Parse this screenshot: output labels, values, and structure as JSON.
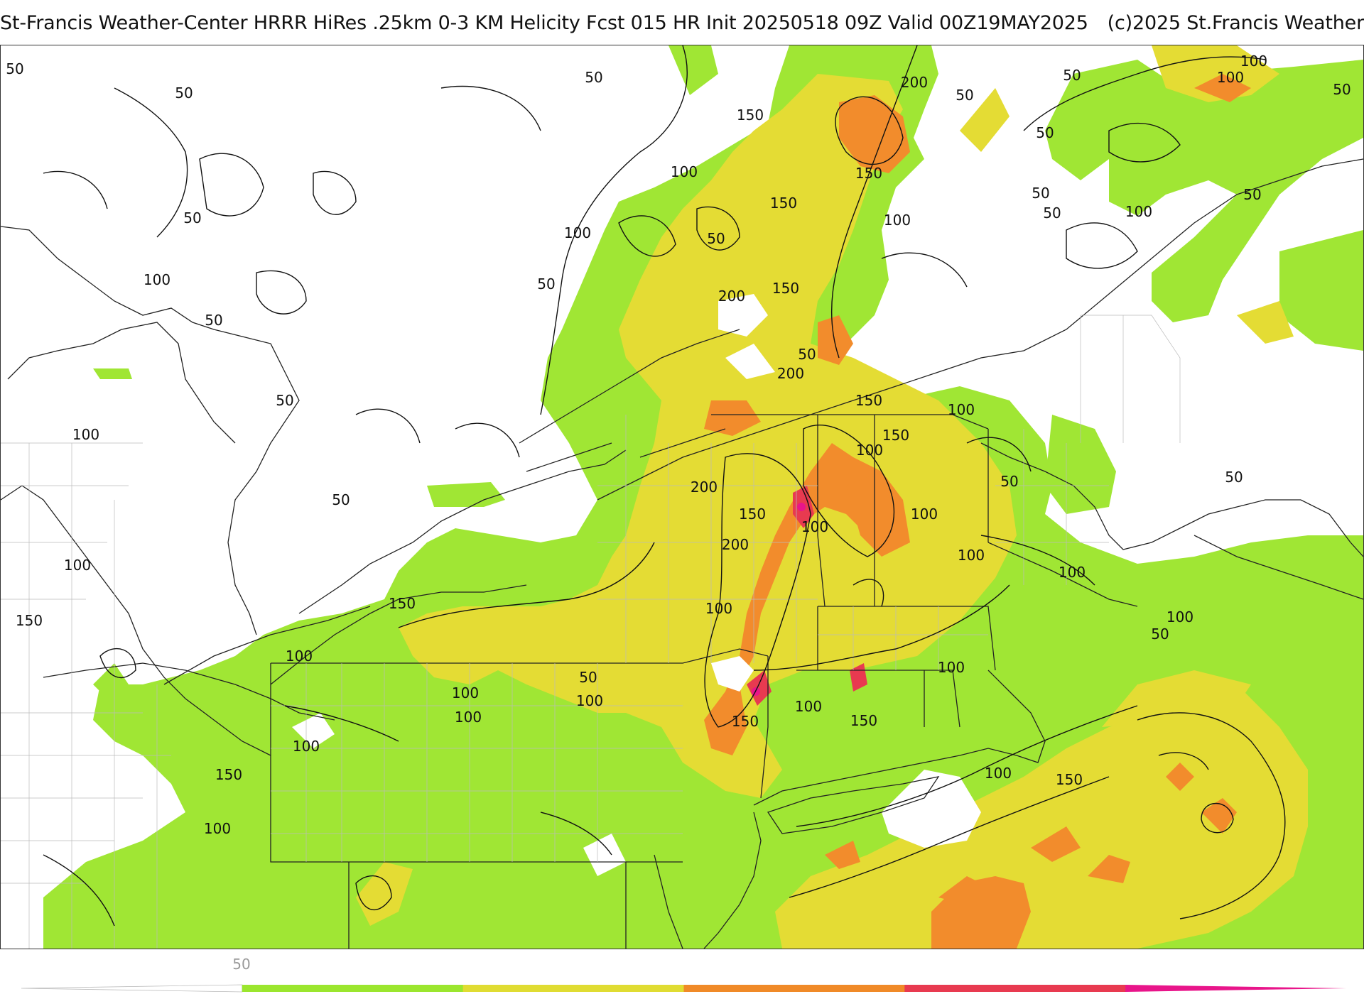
{
  "header": {
    "title": "St-Francis Weather-Center HRRR HiRes .25km 0-3 KM Helicity Fcst 015 HR Init 20250518 09Z  Valid 00Z19MAY2025",
    "copyright": "(c)2025 St.Francis Weather"
  },
  "map": {
    "field": "0-3 KM Helicity",
    "contour_labels": [
      {
        "text": "100"
      },
      {
        "text": "50"
      },
      {
        "text": "50"
      },
      {
        "text": "50"
      },
      {
        "text": "200"
      },
      {
        "text": "50"
      },
      {
        "text": "100"
      },
      {
        "text": "150"
      },
      {
        "text": "50"
      },
      {
        "text": "100"
      },
      {
        "text": "50"
      },
      {
        "text": "50"
      },
      {
        "text": "50"
      },
      {
        "text": "150"
      },
      {
        "text": "100"
      },
      {
        "text": "150"
      },
      {
        "text": "50"
      },
      {
        "text": "100"
      },
      {
        "text": "50"
      },
      {
        "text": "100"
      },
      {
        "text": "50"
      },
      {
        "text": "100"
      },
      {
        "text": "50"
      },
      {
        "text": "50"
      },
      {
        "text": "50"
      },
      {
        "text": "150"
      },
      {
        "text": "200"
      },
      {
        "text": "50"
      },
      {
        "text": "100"
      },
      {
        "text": "200"
      },
      {
        "text": "150"
      },
      {
        "text": "50"
      },
      {
        "text": "100"
      },
      {
        "text": "100"
      },
      {
        "text": "200"
      },
      {
        "text": "50"
      },
      {
        "text": "50"
      },
      {
        "text": "100"
      },
      {
        "text": "150"
      },
      {
        "text": "150"
      },
      {
        "text": "100"
      },
      {
        "text": "100"
      },
      {
        "text": "50"
      },
      {
        "text": "200"
      },
      {
        "text": "100"
      },
      {
        "text": "100"
      },
      {
        "text": "150"
      },
      {
        "text": "100"
      },
      {
        "text": "100"
      },
      {
        "text": "150"
      },
      {
        "text": "100"
      },
      {
        "text": "50"
      },
      {
        "text": "100"
      },
      {
        "text": "100"
      },
      {
        "text": "50"
      },
      {
        "text": "100"
      },
      {
        "text": "100"
      },
      {
        "text": "100"
      },
      {
        "text": "100"
      },
      {
        "text": "150"
      },
      {
        "text": "150"
      },
      {
        "text": "150"
      },
      {
        "text": "100"
      },
      {
        "text": "100"
      },
      {
        "text": "100"
      },
      {
        "text": "150"
      }
    ]
  },
  "legend": {
    "label": "50",
    "colors": [
      "#ffffff",
      "#9be62e",
      "#e0dc32",
      "#f08a28",
      "#e83a50",
      "#e8158a"
    ]
  }
}
